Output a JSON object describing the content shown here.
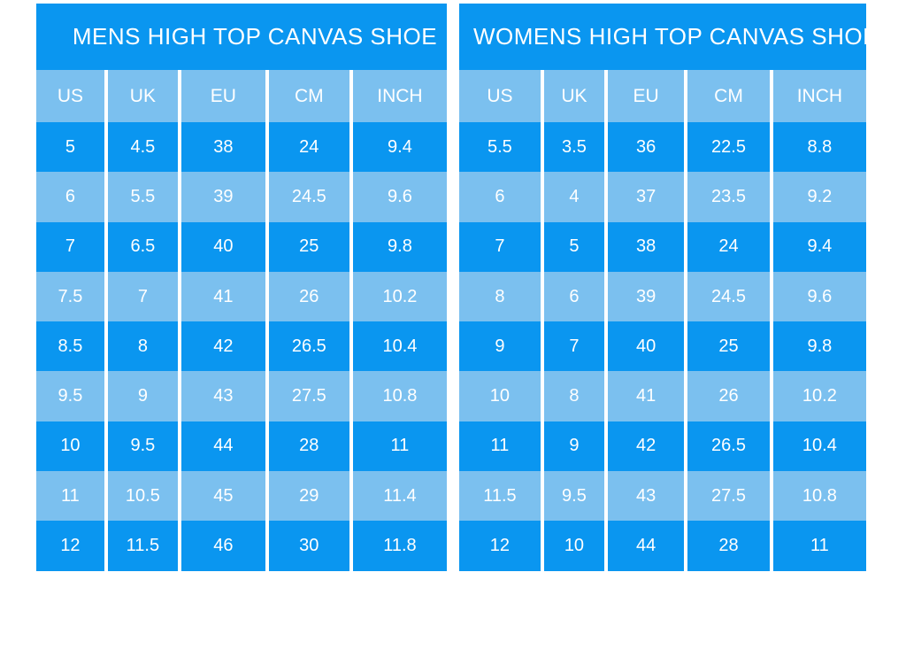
{
  "colors": {
    "row_dark_blue": "#0a96f0",
    "row_light_blue": "#7bc0ef",
    "text_white": "#ffffff",
    "page_background": "#ffffff"
  },
  "chart_data": [
    {
      "type": "table",
      "title": "MENS HIGH TOP CANVAS SHOE",
      "columns": [
        "US",
        "UK",
        "EU",
        "CM",
        "INCH"
      ],
      "rows": [
        [
          "5",
          "4.5",
          "38",
          "24",
          "9.4"
        ],
        [
          "6",
          "5.5",
          "39",
          "24.5",
          "9.6"
        ],
        [
          "7",
          "6.5",
          "40",
          "25",
          "9.8"
        ],
        [
          "7.5",
          "7",
          "41",
          "26",
          "10.2"
        ],
        [
          "8.5",
          "8",
          "42",
          "26.5",
          "10.4"
        ],
        [
          "9.5",
          "9",
          "43",
          "27.5",
          "10.8"
        ],
        [
          "10",
          "9.5",
          "44",
          "28",
          "11"
        ],
        [
          "11",
          "10.5",
          "45",
          "29",
          "11.4"
        ],
        [
          "12",
          "11.5",
          "46",
          "30",
          "11.8"
        ]
      ]
    },
    {
      "type": "table",
      "title": "WOMENS HIGH TOP CANVAS SHOE",
      "columns": [
        "US",
        "UK",
        "EU",
        "CM",
        "INCH"
      ],
      "rows": [
        [
          "5.5",
          "3.5",
          "36",
          "22.5",
          "8.8"
        ],
        [
          "6",
          "4",
          "37",
          "23.5",
          "9.2"
        ],
        [
          "7",
          "5",
          "38",
          "24",
          "9.4"
        ],
        [
          "8",
          "6",
          "39",
          "24.5",
          "9.6"
        ],
        [
          "9",
          "7",
          "40",
          "25",
          "9.8"
        ],
        [
          "10",
          "8",
          "41",
          "26",
          "10.2"
        ],
        [
          "11",
          "9",
          "42",
          "26.5",
          "10.4"
        ],
        [
          "11.5",
          "9.5",
          "43",
          "27.5",
          "10.8"
        ],
        [
          "12",
          "10",
          "44",
          "28",
          "11"
        ]
      ]
    }
  ]
}
